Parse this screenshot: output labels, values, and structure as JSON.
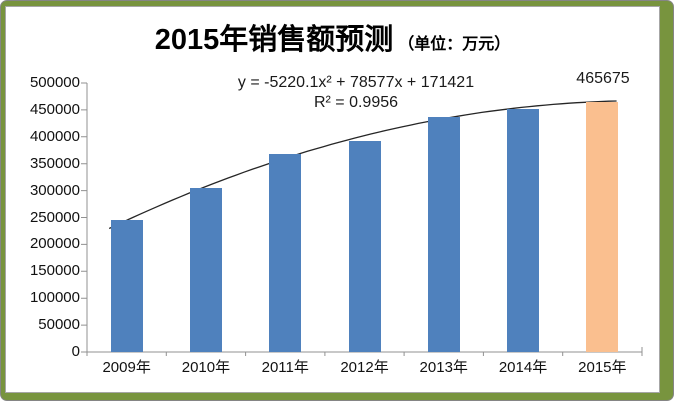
{
  "chart_data": {
    "type": "bar",
    "title": "2015年销售额预测",
    "unit_label": "（单位：万元）",
    "categories": [
      "2009年",
      "2010年",
      "2011年",
      "2012年",
      "2013年",
      "2014年",
      "2015年"
    ],
    "values": [
      245000,
      305000,
      368000,
      392000,
      437000,
      452000,
      465675
    ],
    "forecast_index": 6,
    "forecast_data_label": "465675",
    "bar_colors": {
      "default": "#4F81BD",
      "forecast": "#FABF8F"
    },
    "trendline": {
      "kind": "polynomial-order-2",
      "equation": "y = -5220.1x² + 78577x + 171421",
      "r_squared_label": "R² = 0.9956",
      "coefficients": {
        "a": -5220.1,
        "b": 78577,
        "c": 171421
      },
      "color": "#262626"
    },
    "y_axis": {
      "min": 0,
      "max": 500000,
      "step": 50000,
      "tick_labels": [
        "0",
        "50000",
        "100000",
        "150000",
        "200000",
        "250000",
        "300000",
        "350000",
        "400000",
        "450000",
        "500000"
      ]
    },
    "axis_color": "#919191",
    "background": {
      "slide": "#78943E",
      "chart": "#FFFFFF",
      "chart_border": "#A6A6A6"
    },
    "legend": "none",
    "grid": "off"
  }
}
